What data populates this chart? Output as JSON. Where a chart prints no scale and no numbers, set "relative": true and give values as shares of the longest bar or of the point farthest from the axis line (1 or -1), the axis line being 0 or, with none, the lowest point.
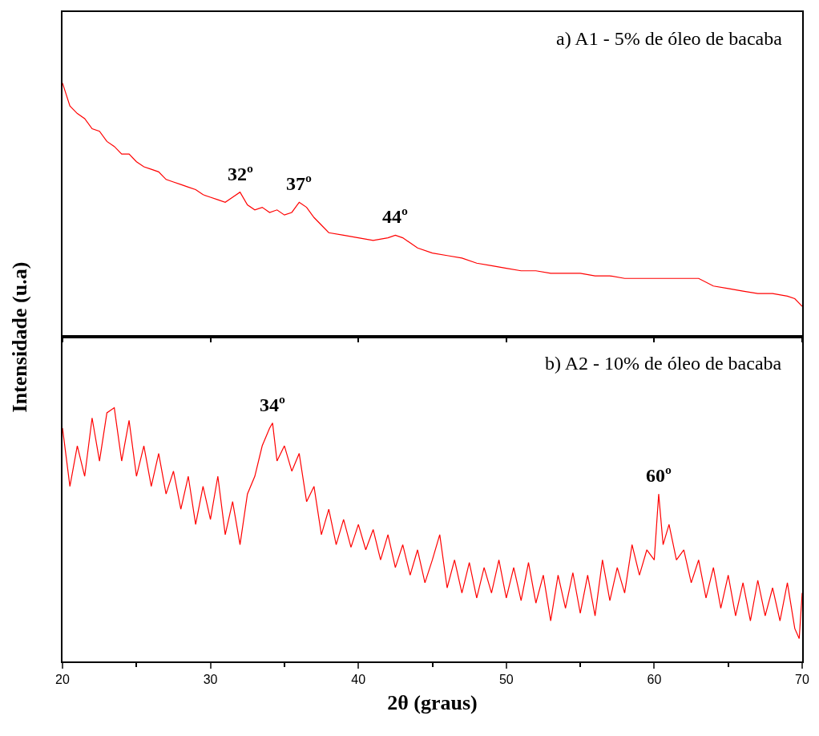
{
  "chart_data": [
    {
      "type": "line",
      "title": "a) A1 - 5% de óleo de bacaba",
      "ylabel": "Intensidade (u.a)",
      "relative": true,
      "xlim": [
        20,
        70
      ],
      "xticks": [
        {
          "value": 20,
          "label": null
        },
        {
          "value": 30,
          "label": null
        },
        {
          "value": 40,
          "label": null
        },
        {
          "value": 50,
          "label": null
        },
        {
          "value": 60,
          "label": null
        },
        {
          "value": 70,
          "label": null
        }
      ],
      "tick_labels": false,
      "marker": "none",
      "line_style": "solid",
      "annotations": [
        {
          "text": "32º",
          "x": 32,
          "y": 0.57
        },
        {
          "text": "37º",
          "x": 36,
          "y": 0.53
        },
        {
          "text": "44º",
          "x": 42.5,
          "y": 0.4
        }
      ],
      "series": [
        {
          "color": "#ff0000",
          "x": [
            20,
            20.5,
            21,
            21.5,
            22,
            22.5,
            23,
            23.5,
            24,
            24.5,
            25,
            25.5,
            26,
            26.5,
            27,
            27.5,
            28,
            28.5,
            29,
            29.5,
            30,
            30.5,
            31,
            31.5,
            32,
            32.5,
            33,
            33.5,
            34,
            34.5,
            35,
            35.5,
            36,
            36.5,
            37,
            37.5,
            38,
            39,
            40,
            41,
            42,
            42.5,
            43,
            44,
            45,
            46,
            47,
            48,
            49,
            50,
            51,
            52,
            53,
            54,
            55,
            56,
            57,
            58,
            59,
            60,
            61,
            62,
            63,
            64,
            65,
            66,
            67,
            68,
            69,
            69.5,
            70
          ],
          "values": [
            1.0,
            0.91,
            0.88,
            0.86,
            0.82,
            0.81,
            0.77,
            0.75,
            0.72,
            0.72,
            0.69,
            0.67,
            0.66,
            0.65,
            0.62,
            0.61,
            0.6,
            0.59,
            0.58,
            0.56,
            0.55,
            0.54,
            0.53,
            0.55,
            0.57,
            0.52,
            0.5,
            0.51,
            0.49,
            0.5,
            0.48,
            0.49,
            0.53,
            0.51,
            0.47,
            0.44,
            0.41,
            0.4,
            0.39,
            0.38,
            0.39,
            0.4,
            0.39,
            0.35,
            0.33,
            0.32,
            0.31,
            0.29,
            0.28,
            0.27,
            0.26,
            0.26,
            0.25,
            0.25,
            0.25,
            0.24,
            0.24,
            0.23,
            0.23,
            0.23,
            0.23,
            0.23,
            0.23,
            0.2,
            0.19,
            0.18,
            0.17,
            0.17,
            0.16,
            0.15,
            0.12
          ]
        }
      ]
    },
    {
      "type": "line",
      "title": "b) A2 - 10% de óleo de bacaba",
      "xlabel": "2θ (graus)",
      "relative": true,
      "xlim": [
        20,
        70
      ],
      "xticks": [
        20,
        {
          "value": 25,
          "label": null
        },
        30,
        {
          "value": 35,
          "label": null
        },
        40,
        {
          "value": 45,
          "label": null
        },
        50,
        {
          "value": 55,
          "label": null
        },
        60,
        {
          "value": 65,
          "label": null
        },
        70
      ],
      "tick_labels": "x",
      "marker": "none",
      "line_style": "solid",
      "annotations": [
        {
          "text": "34º",
          "x": 34.2,
          "y": 0.94
        },
        {
          "text": "60º",
          "x": 60.3,
          "y": 0.66
        }
      ],
      "series": [
        {
          "color": "#ff0000",
          "x": [
            20,
            20.5,
            21,
            21.5,
            22,
            22.5,
            23,
            23.5,
            24,
            24.5,
            25,
            25.5,
            26,
            26.5,
            27,
            27.5,
            28,
            28.5,
            29,
            29.5,
            30,
            30.5,
            31,
            31.5,
            32,
            32.5,
            33,
            33.5,
            34,
            34.2,
            34.5,
            35,
            35.5,
            36,
            36.5,
            37,
            37.5,
            38,
            38.5,
            39,
            39.5,
            40,
            40.5,
            41,
            41.5,
            42,
            42.5,
            43,
            43.5,
            44,
            44.5,
            45,
            45.5,
            46,
            46.5,
            47,
            47.5,
            48,
            48.5,
            49,
            49.5,
            50,
            50.5,
            51,
            51.5,
            52,
            52.5,
            53,
            53.5,
            54,
            54.5,
            55,
            55.5,
            56,
            56.5,
            57,
            57.5,
            58,
            58.5,
            59,
            59.5,
            60,
            60.3,
            60.6,
            61,
            61.5,
            62,
            62.5,
            63,
            63.5,
            64,
            64.5,
            65,
            65.5,
            66,
            66.5,
            67,
            67.5,
            68,
            68.5,
            69,
            69.5,
            69.8,
            70
          ],
          "values": [
            0.92,
            0.69,
            0.85,
            0.73,
            0.96,
            0.79,
            0.98,
            1.0,
            0.79,
            0.95,
            0.73,
            0.85,
            0.69,
            0.82,
            0.66,
            0.75,
            0.6,
            0.73,
            0.54,
            0.69,
            0.56,
            0.73,
            0.5,
            0.63,
            0.46,
            0.66,
            0.73,
            0.85,
            0.92,
            0.94,
            0.79,
            0.85,
            0.75,
            0.82,
            0.63,
            0.69,
            0.5,
            0.6,
            0.46,
            0.56,
            0.45,
            0.54,
            0.44,
            0.52,
            0.4,
            0.5,
            0.37,
            0.46,
            0.34,
            0.44,
            0.31,
            0.4,
            0.5,
            0.29,
            0.4,
            0.27,
            0.39,
            0.25,
            0.37,
            0.27,
            0.4,
            0.25,
            0.37,
            0.24,
            0.39,
            0.23,
            0.34,
            0.16,
            0.34,
            0.21,
            0.35,
            0.19,
            0.34,
            0.18,
            0.4,
            0.24,
            0.37,
            0.27,
            0.46,
            0.34,
            0.44,
            0.4,
            0.66,
            0.46,
            0.54,
            0.4,
            0.44,
            0.31,
            0.4,
            0.25,
            0.37,
            0.21,
            0.34,
            0.18,
            0.31,
            0.16,
            0.32,
            0.18,
            0.29,
            0.16,
            0.31,
            0.13,
            0.09,
            0.27
          ]
        }
      ]
    }
  ]
}
